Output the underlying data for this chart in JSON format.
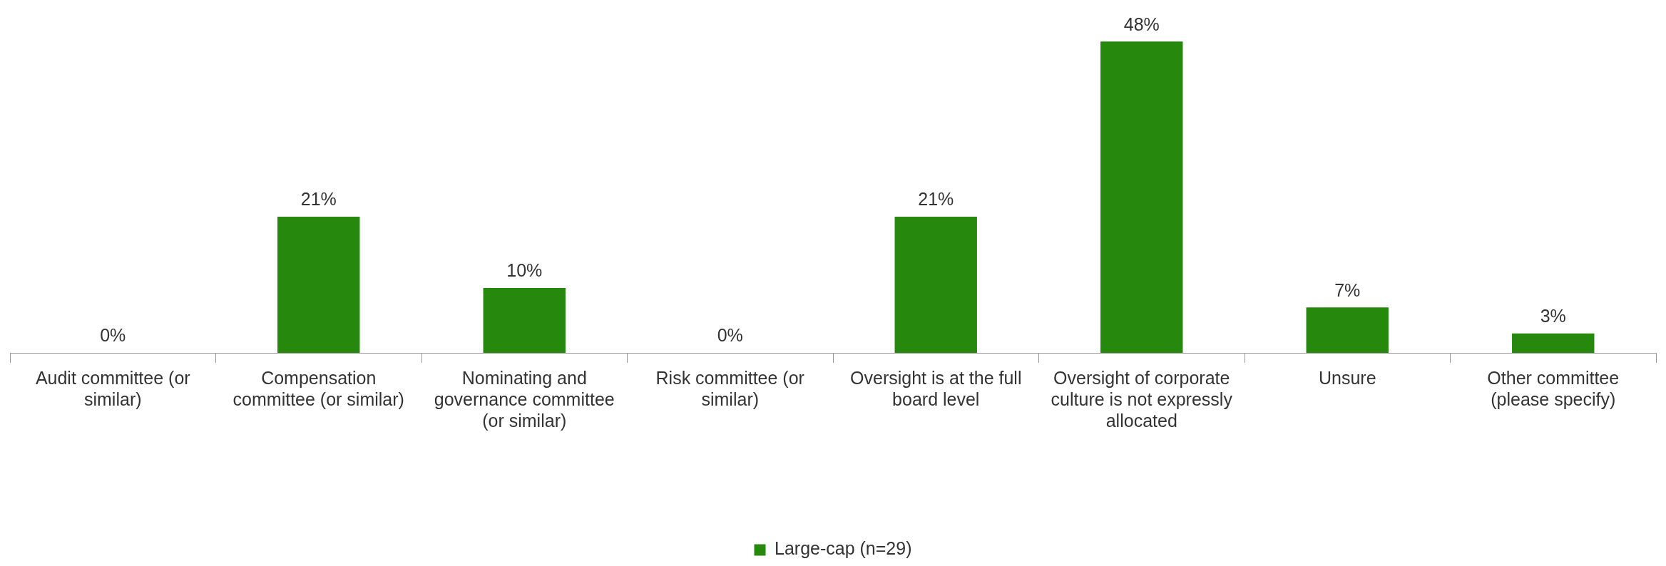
{
  "chart_data": {
    "type": "bar",
    "categories": [
      "Audit committee (or similar)",
      "Compensation committee (or similar)",
      "Nominating and governance committee (or similar)",
      "Risk committee (or similar)",
      "Oversight is at the full board level",
      "Oversight of corporate culture is not expressly allocated",
      "Unsure",
      "Other committee (please specify)"
    ],
    "series": [
      {
        "name": "Large-cap (n=29)",
        "color": "#26890d",
        "values": [
          0,
          21,
          10,
          0,
          21,
          48,
          7,
          3
        ],
        "value_labels": [
          "0%",
          "21%",
          "10%",
          "0%",
          "21%",
          "48%",
          "7%",
          "3%"
        ]
      }
    ],
    "legend": "bottom",
    "grid": false,
    "tick_labels": "x"
  }
}
